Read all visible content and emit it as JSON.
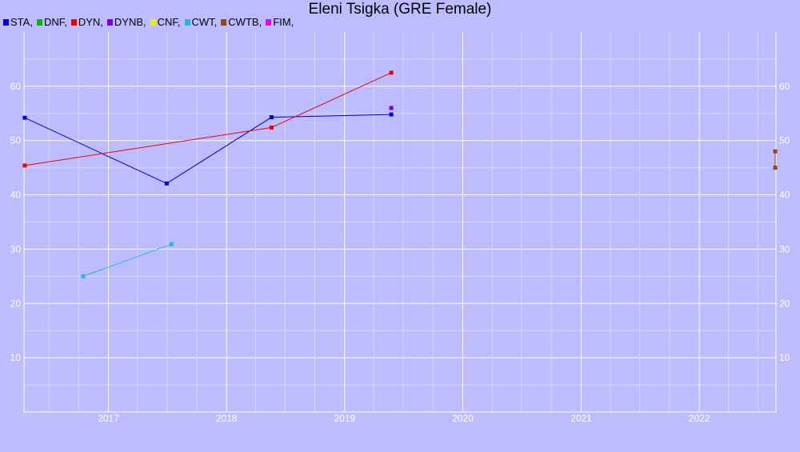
{
  "chart_data": {
    "type": "line",
    "title": "Eleni Tsigka (GRE Female)",
    "xlabel": "",
    "ylabel": "",
    "x_axis": "date",
    "xlim": [
      "2016-04-15",
      "2022-08-26"
    ],
    "ylim": [
      0,
      70
    ],
    "x_ticks": [
      "2017",
      "2018",
      "2019",
      "2020",
      "2021",
      "2022"
    ],
    "y_ticks": [
      10,
      20,
      30,
      40,
      50,
      60
    ],
    "grid": true,
    "legend_position": "top-left",
    "legend": [
      {
        "label": "STA,",
        "color": "#0000dd"
      },
      {
        "label": "DNF,",
        "color": "#00bb00"
      },
      {
        "label": "DYN,",
        "color": "#ee0000"
      },
      {
        "label": "DYNB,",
        "color": "#7700ee"
      },
      {
        "label": "CNF,",
        "color": "#eeee00"
      },
      {
        "label": "CWT,",
        "color": "#22bbdd"
      },
      {
        "label": "CWTB,",
        "color": "#994411"
      },
      {
        "label": "FIM,",
        "color": "#ee00ee"
      }
    ],
    "series": [
      {
        "name": "STA",
        "color": "#0000dd",
        "points": [
          {
            "x": "2016-04-15",
            "y": 54.2
          },
          {
            "x": "2017-06-30",
            "y": 42.1
          },
          {
            "x": "2018-05-20",
            "y": 54.3
          },
          {
            "x": "2019-05-25",
            "y": 54.8
          }
        ]
      },
      {
        "name": "DYN",
        "color": "#ee0000",
        "points": [
          {
            "x": "2016-04-15",
            "y": 45.4
          },
          {
            "x": "2018-05-20",
            "y": 52.4
          },
          {
            "x": "2019-05-25",
            "y": 62.5
          }
        ]
      },
      {
        "name": "DYNB",
        "color": "#7700ee",
        "points": [
          {
            "x": "2019-05-25",
            "y": 56.0
          }
        ]
      },
      {
        "name": "CWT",
        "color": "#22bbdd",
        "points": [
          {
            "x": "2016-10-15",
            "y": 25.0
          },
          {
            "x": "2017-07-15",
            "y": 30.9
          }
        ]
      },
      {
        "name": "CWTB",
        "color": "#994411",
        "points": [
          {
            "x": "2022-08-26",
            "y": 45.0
          },
          {
            "x": "2022-08-26",
            "y": 48.0
          }
        ]
      }
    ]
  }
}
